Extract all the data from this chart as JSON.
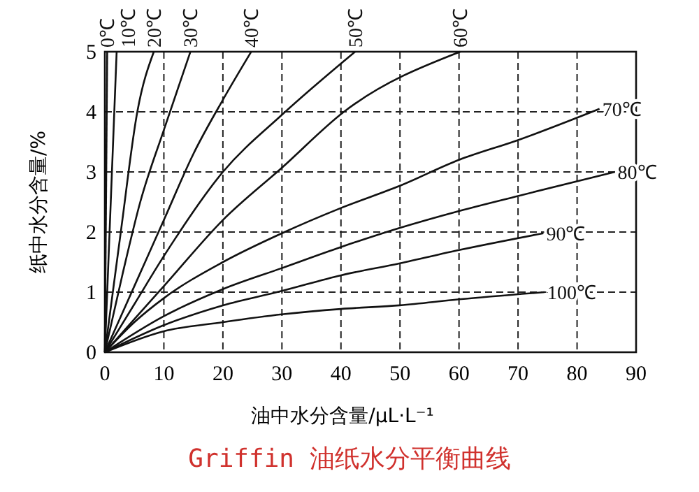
{
  "chart_data": {
    "type": "line",
    "title": "Griffin 油纸水分平衡曲线",
    "xlabel": "油中水分含量/μL·L⁻¹",
    "ylabel": "纸中水分含量/%",
    "xlim": [
      0,
      90
    ],
    "xticks": [
      0,
      10,
      20,
      30,
      40,
      50,
      60,
      70,
      80,
      90
    ],
    "ylim": [
      0,
      5
    ],
    "yticks": [
      0,
      1,
      2,
      3,
      4,
      5
    ],
    "grid": true,
    "marker": "none",
    "line_style": "solid",
    "series": [
      {
        "name": "0℃",
        "color": "#111111",
        "x": [
          0,
          0.4
        ],
        "values": [
          0,
          5
        ]
      },
      {
        "name": "10℃",
        "color": "#111111",
        "x": [
          0,
          1,
          2
        ],
        "values": [
          0,
          2.5,
          5
        ]
      },
      {
        "name": "20℃",
        "color": "#111111",
        "x": [
          0,
          2.7,
          5.5,
          8.3
        ],
        "values": [
          0,
          2,
          4,
          5
        ]
      },
      {
        "name": "30℃",
        "color": "#111111",
        "x": [
          0,
          3,
          6,
          10,
          14.5
        ],
        "values": [
          0,
          1.3,
          2.5,
          3.7,
          5
        ]
      },
      {
        "name": "40℃",
        "color": "#111111",
        "x": [
          0,
          5,
          10,
          15,
          20,
          24.8
        ],
        "values": [
          0,
          1.1,
          2.2,
          3.3,
          4.2,
          5
        ]
      },
      {
        "name": "50℃",
        "color": "#111111",
        "x": [
          0,
          5,
          10,
          20,
          30,
          42.4
        ],
        "values": [
          0,
          0.8,
          1.6,
          3,
          3.95,
          5
        ]
      },
      {
        "name": "60℃",
        "color": "#111111",
        "x": [
          0,
          10,
          20,
          30,
          40.5,
          60.2
        ],
        "values": [
          0,
          1.1,
          2.2,
          3.07,
          4,
          5
        ]
      },
      {
        "name": "70℃",
        "color": "#111111",
        "x": [
          0,
          5,
          10,
          20,
          30,
          40,
          50,
          60,
          70,
          83.8
        ],
        "values": [
          0,
          0.5,
          0.9,
          1.5,
          1.98,
          2.4,
          2.77,
          3.2,
          3.53,
          4.05
        ]
      },
      {
        "name": "80℃",
        "color": "#111111",
        "x": [
          0,
          10,
          20,
          30,
          40,
          50,
          60,
          70,
          86.4
        ],
        "values": [
          0,
          0.6,
          1.05,
          1.4,
          1.75,
          2.07,
          2.35,
          2.6,
          3
        ]
      },
      {
        "name": "90℃",
        "color": "#111111",
        "x": [
          0,
          10,
          20,
          30,
          40,
          50,
          60,
          74.3
        ],
        "values": [
          0,
          0.45,
          0.78,
          1.02,
          1.28,
          1.48,
          1.7,
          1.98
        ]
      },
      {
        "name": "100℃",
        "color": "#111111",
        "x": [
          0,
          10,
          20,
          30,
          40,
          50,
          60,
          74.5
        ],
        "values": [
          0,
          0.35,
          0.5,
          0.63,
          0.72,
          0.78,
          0.88,
          1
        ]
      }
    ]
  }
}
